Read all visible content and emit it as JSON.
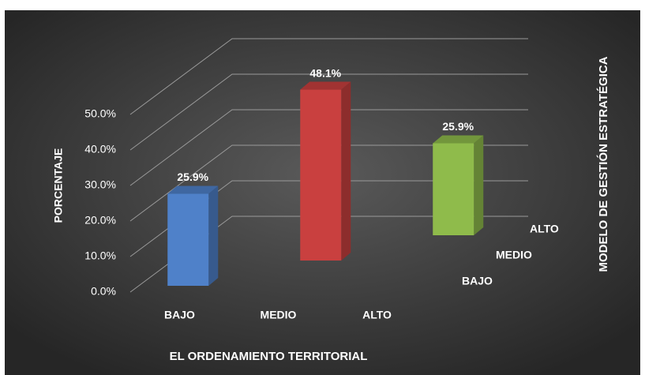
{
  "chart_data": {
    "type": "bar3d",
    "categories": [
      "BAJO",
      "MEDIO",
      "ALTO"
    ],
    "zcategories": [
      "BAJO",
      "MEDIO",
      "ALTO"
    ],
    "values": [
      25.9,
      48.1,
      25.9
    ],
    "value_labels": [
      "25.9%",
      "48.1%",
      "25.9%"
    ],
    "colors": [
      "#4f81c9",
      "#c9403f",
      "#8fbb4b"
    ],
    "ylim": [
      0,
      50
    ],
    "yticks": [
      {
        "value": 0,
        "label": "0.0%"
      },
      {
        "value": 10,
        "label": "10.0%"
      },
      {
        "value": 20,
        "label": "20.0%"
      },
      {
        "value": 30,
        "label": "30.0%"
      },
      {
        "value": 40,
        "label": "40.0%"
      },
      {
        "value": 50,
        "label": "50.0%"
      }
    ],
    "grid": true,
    "ylabel": "PORCENTAJE",
    "xlabel": "EL ORDENAMIENTO TERRITORIAL",
    "zlabel": "MODELO DE GESTIÓN ESTRATÉGICA"
  }
}
